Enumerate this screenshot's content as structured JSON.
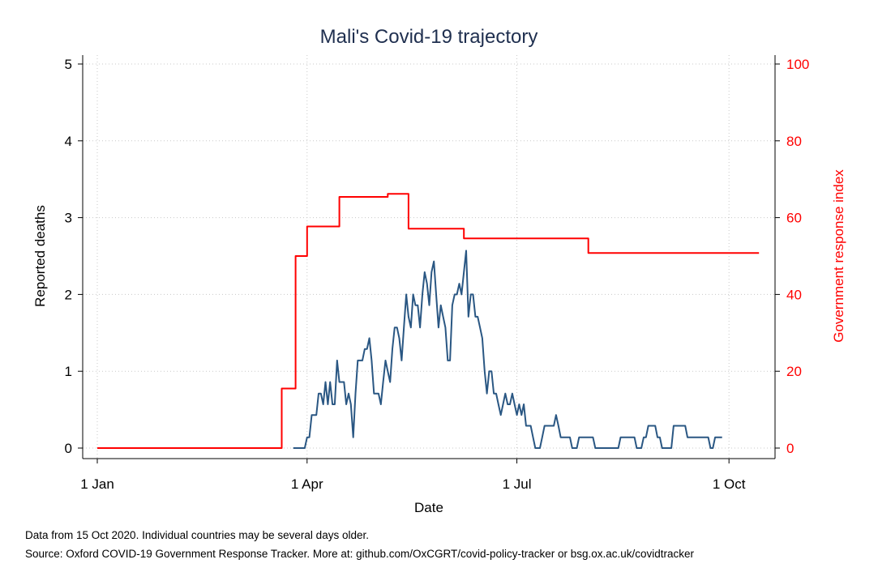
{
  "chart_data": {
    "type": "line",
    "title": "Mali's Covid-19 trajectory",
    "xlabel": "Date",
    "ylabel_left": "Reported deaths",
    "ylabel_right": "Government response index",
    "x_ticks": [
      {
        "date": "2020-01-01",
        "label": "1 Jan"
      },
      {
        "date": "2020-04-01",
        "label": "1 Apr"
      },
      {
        "date": "2020-07-01",
        "label": "1 Jul"
      },
      {
        "date": "2020-10-01",
        "label": "1 Oct"
      }
    ],
    "xlim": [
      "2020-01-01",
      "2020-10-15"
    ],
    "ylim_left": [
      0,
      5
    ],
    "ylim_right": [
      0,
      100
    ],
    "y_ticks_left": [
      0,
      1,
      2,
      3,
      4,
      5
    ],
    "y_ticks_right": [
      0,
      20,
      40,
      60,
      80,
      100
    ],
    "grid": true,
    "colors": {
      "deaths": "#2a5783",
      "stringency": "#ff0000",
      "axis_right": "#ff0000",
      "title": "#1f2f4f"
    },
    "series": [
      {
        "axis": "right",
        "step": true,
        "points": [
          [
            "2020-01-01",
            0
          ],
          [
            "2020-03-20",
            0
          ],
          [
            "2020-03-21",
            15.5
          ],
          [
            "2020-03-26",
            15.5
          ],
          [
            "2020-03-27",
            50
          ],
          [
            "2020-03-31",
            50
          ],
          [
            "2020-04-01",
            57.7
          ],
          [
            "2020-04-14",
            57.7
          ],
          [
            "2020-04-15",
            65.4
          ],
          [
            "2020-05-05",
            65.4
          ],
          [
            "2020-05-06",
            66.2
          ],
          [
            "2020-05-14",
            66.2
          ],
          [
            "2020-05-15",
            57.1
          ],
          [
            "2020-06-07",
            57.1
          ],
          [
            "2020-06-08",
            54.6
          ],
          [
            "2020-07-31",
            54.6
          ],
          [
            "2020-08-01",
            50.8
          ],
          [
            "2020-10-14",
            50.8
          ]
        ]
      },
      {
        "axis": "left",
        "step": false,
        "points": [
          [
            "2020-03-26",
            0
          ],
          [
            "2020-03-30",
            0
          ],
          [
            "2020-03-31",
            0
          ],
          [
            "2020-04-01",
            0.14
          ],
          [
            "2020-04-02",
            0.14
          ],
          [
            "2020-04-03",
            0.43
          ],
          [
            "2020-04-05",
            0.43
          ],
          [
            "2020-04-06",
            0.71
          ],
          [
            "2020-04-07",
            0.71
          ],
          [
            "2020-04-08",
            0.57
          ],
          [
            "2020-04-09",
            0.86
          ],
          [
            "2020-04-10",
            0.57
          ],
          [
            "2020-04-11",
            0.86
          ],
          [
            "2020-04-12",
            0.57
          ],
          [
            "2020-04-13",
            0.57
          ],
          [
            "2020-04-14",
            1.14
          ],
          [
            "2020-04-15",
            0.86
          ],
          [
            "2020-04-16",
            0.86
          ],
          [
            "2020-04-17",
            0.86
          ],
          [
            "2020-04-18",
            0.57
          ],
          [
            "2020-04-19",
            0.71
          ],
          [
            "2020-04-20",
            0.57
          ],
          [
            "2020-04-21",
            0.14
          ],
          [
            "2020-04-22",
            0.71
          ],
          [
            "2020-04-23",
            1.14
          ],
          [
            "2020-04-24",
            1.14
          ],
          [
            "2020-04-25",
            1.14
          ],
          [
            "2020-04-26",
            1.29
          ],
          [
            "2020-04-27",
            1.29
          ],
          [
            "2020-04-28",
            1.43
          ],
          [
            "2020-04-29",
            1.14
          ],
          [
            "2020-04-30",
            0.71
          ],
          [
            "2020-05-01",
            0.71
          ],
          [
            "2020-05-02",
            0.71
          ],
          [
            "2020-05-03",
            0.57
          ],
          [
            "2020-05-04",
            0.86
          ],
          [
            "2020-05-05",
            1.14
          ],
          [
            "2020-05-06",
            1.0
          ],
          [
            "2020-05-07",
            0.86
          ],
          [
            "2020-05-08",
            1.29
          ],
          [
            "2020-05-09",
            1.57
          ],
          [
            "2020-05-10",
            1.57
          ],
          [
            "2020-05-11",
            1.43
          ],
          [
            "2020-05-12",
            1.14
          ],
          [
            "2020-05-13",
            1.57
          ],
          [
            "2020-05-14",
            2.0
          ],
          [
            "2020-05-15",
            1.71
          ],
          [
            "2020-05-16",
            1.57
          ],
          [
            "2020-05-17",
            2.0
          ],
          [
            "2020-05-18",
            1.86
          ],
          [
            "2020-05-19",
            1.86
          ],
          [
            "2020-05-20",
            1.57
          ],
          [
            "2020-05-21",
            2.0
          ],
          [
            "2020-05-22",
            2.29
          ],
          [
            "2020-05-23",
            2.14
          ],
          [
            "2020-05-24",
            1.86
          ],
          [
            "2020-05-25",
            2.29
          ],
          [
            "2020-05-26",
            2.43
          ],
          [
            "2020-05-27",
            2.0
          ],
          [
            "2020-05-28",
            1.57
          ],
          [
            "2020-05-29",
            1.86
          ],
          [
            "2020-05-30",
            1.71
          ],
          [
            "2020-05-31",
            1.57
          ],
          [
            "2020-06-01",
            1.14
          ],
          [
            "2020-06-02",
            1.14
          ],
          [
            "2020-06-03",
            1.86
          ],
          [
            "2020-06-04",
            2.0
          ],
          [
            "2020-06-05",
            2.0
          ],
          [
            "2020-06-06",
            2.14
          ],
          [
            "2020-06-07",
            2.0
          ],
          [
            "2020-06-08",
            2.29
          ],
          [
            "2020-06-09",
            2.57
          ],
          [
            "2020-06-10",
            1.71
          ],
          [
            "2020-06-11",
            2.0
          ],
          [
            "2020-06-12",
            2.0
          ],
          [
            "2020-06-13",
            1.71
          ],
          [
            "2020-06-14",
            1.71
          ],
          [
            "2020-06-15",
            1.57
          ],
          [
            "2020-06-16",
            1.43
          ],
          [
            "2020-06-17",
            1.0
          ],
          [
            "2020-06-18",
            0.71
          ],
          [
            "2020-06-19",
            1.0
          ],
          [
            "2020-06-20",
            1.0
          ],
          [
            "2020-06-21",
            0.71
          ],
          [
            "2020-06-22",
            0.71
          ],
          [
            "2020-06-23",
            0.57
          ],
          [
            "2020-06-24",
            0.43
          ],
          [
            "2020-06-25",
            0.57
          ],
          [
            "2020-06-26",
            0.71
          ],
          [
            "2020-06-27",
            0.57
          ],
          [
            "2020-06-28",
            0.57
          ],
          [
            "2020-06-29",
            0.71
          ],
          [
            "2020-06-30",
            0.57
          ],
          [
            "2020-07-01",
            0.43
          ],
          [
            "2020-07-02",
            0.57
          ],
          [
            "2020-07-03",
            0.43
          ],
          [
            "2020-07-04",
            0.57
          ],
          [
            "2020-07-05",
            0.29
          ],
          [
            "2020-07-06",
            0.29
          ],
          [
            "2020-07-07",
            0.29
          ],
          [
            "2020-07-08",
            0.14
          ],
          [
            "2020-07-09",
            0.0
          ],
          [
            "2020-07-10",
            0.0
          ],
          [
            "2020-07-11",
            0.0
          ],
          [
            "2020-07-12",
            0.14
          ],
          [
            "2020-07-13",
            0.29
          ],
          [
            "2020-07-14",
            0.29
          ],
          [
            "2020-07-15",
            0.29
          ],
          [
            "2020-07-16",
            0.29
          ],
          [
            "2020-07-17",
            0.29
          ],
          [
            "2020-07-18",
            0.43
          ],
          [
            "2020-07-19",
            0.29
          ],
          [
            "2020-07-20",
            0.14
          ],
          [
            "2020-07-21",
            0.14
          ],
          [
            "2020-07-22",
            0.14
          ],
          [
            "2020-07-23",
            0.14
          ],
          [
            "2020-07-24",
            0.14
          ],
          [
            "2020-07-25",
            0.0
          ],
          [
            "2020-07-26",
            0.0
          ],
          [
            "2020-07-27",
            0.0
          ],
          [
            "2020-07-28",
            0.14
          ],
          [
            "2020-07-29",
            0.14
          ],
          [
            "2020-08-03",
            0.14
          ],
          [
            "2020-08-04",
            0.0
          ],
          [
            "2020-08-14",
            0.0
          ],
          [
            "2020-08-15",
            0.14
          ],
          [
            "2020-08-21",
            0.14
          ],
          [
            "2020-08-22",
            0.0
          ],
          [
            "2020-08-24",
            0.0
          ],
          [
            "2020-08-25",
            0.14
          ],
          [
            "2020-08-26",
            0.14
          ],
          [
            "2020-08-27",
            0.29
          ],
          [
            "2020-08-30",
            0.29
          ],
          [
            "2020-08-31",
            0.14
          ],
          [
            "2020-09-01",
            0.14
          ],
          [
            "2020-09-02",
            0.0
          ],
          [
            "2020-09-06",
            0.0
          ],
          [
            "2020-09-07",
            0.29
          ],
          [
            "2020-09-12",
            0.29
          ],
          [
            "2020-09-13",
            0.14
          ],
          [
            "2020-09-22",
            0.14
          ],
          [
            "2020-09-23",
            0.0
          ],
          [
            "2020-09-24",
            0.0
          ],
          [
            "2020-09-25",
            0.14
          ],
          [
            "2020-09-28",
            0.14
          ]
        ]
      }
    ],
    "notes": [
      "Data from 15 Oct 2020. Individual countries may be several days older.",
      "Source: Oxford COVID-19 Government Response Tracker. More at: github.com/OxCGRT/covid-policy-tracker or bsg.ox.ac.uk/covidtracker"
    ]
  }
}
